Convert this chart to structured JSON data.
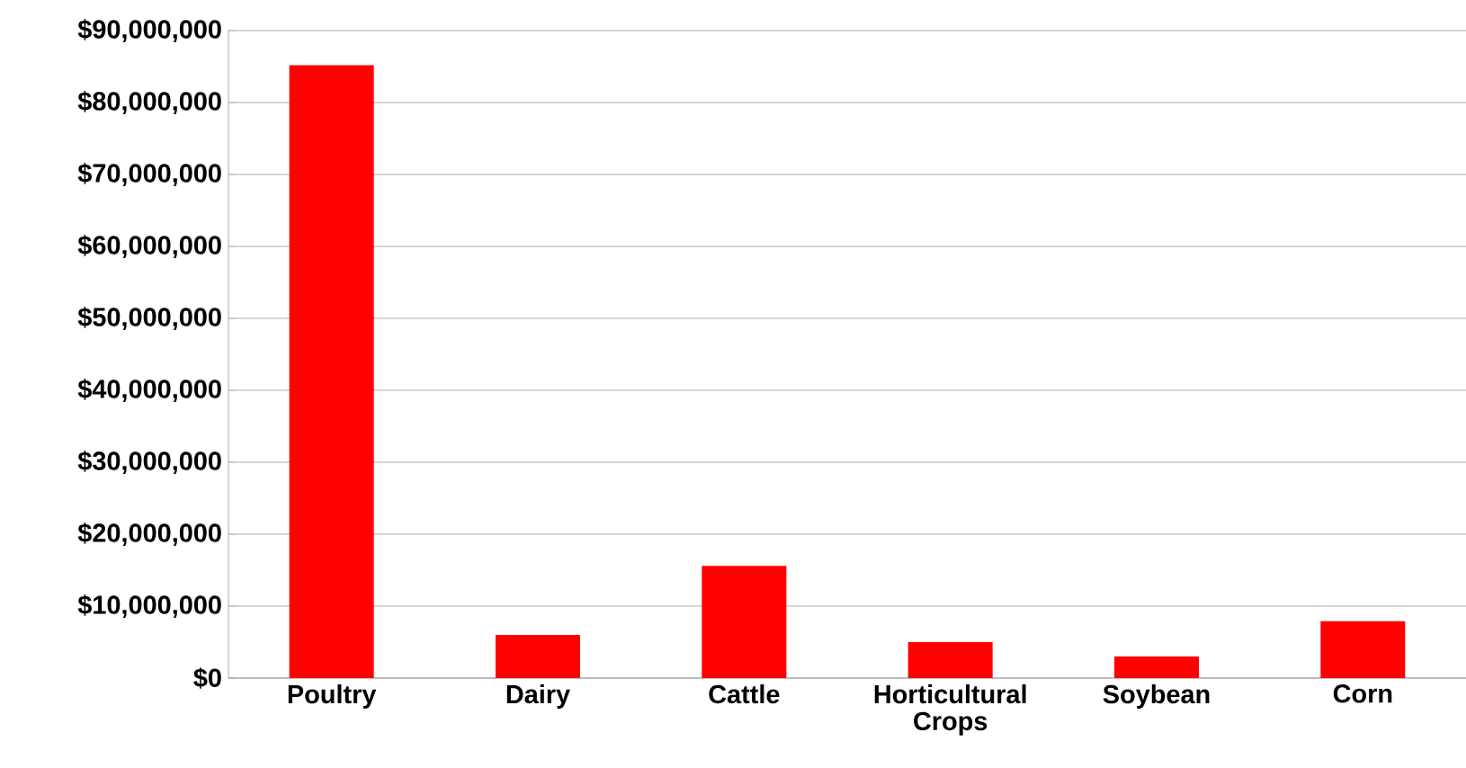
{
  "chart_data": {
    "type": "bar",
    "categories": [
      "Poultry",
      "Dairy",
      "Cattle",
      "Horticultural Crops",
      "Soybean",
      "Corn"
    ],
    "values": [
      85200000,
      6000000,
      15600000,
      5000000,
      3000000,
      7900000
    ],
    "color": "#ff0000",
    "ylim": [
      0,
      90000000
    ],
    "yticks": [
      {
        "value": 0,
        "label": "$0"
      },
      {
        "value": 10000000,
        "label": "$10,000,000"
      },
      {
        "value": 20000000,
        "label": "$20,000,000"
      },
      {
        "value": 30000000,
        "label": "$30,000,000"
      },
      {
        "value": 40000000,
        "label": "$40,000,000"
      },
      {
        "value": 50000000,
        "label": "$50,000,000"
      },
      {
        "value": 60000000,
        "label": "$60,000,000"
      },
      {
        "value": 70000000,
        "label": "$70,000,000"
      },
      {
        "value": 80000000,
        "label": "$80,000,000"
      },
      {
        "value": 90000000,
        "label": "$90,000,000"
      }
    ],
    "grid": "y"
  }
}
